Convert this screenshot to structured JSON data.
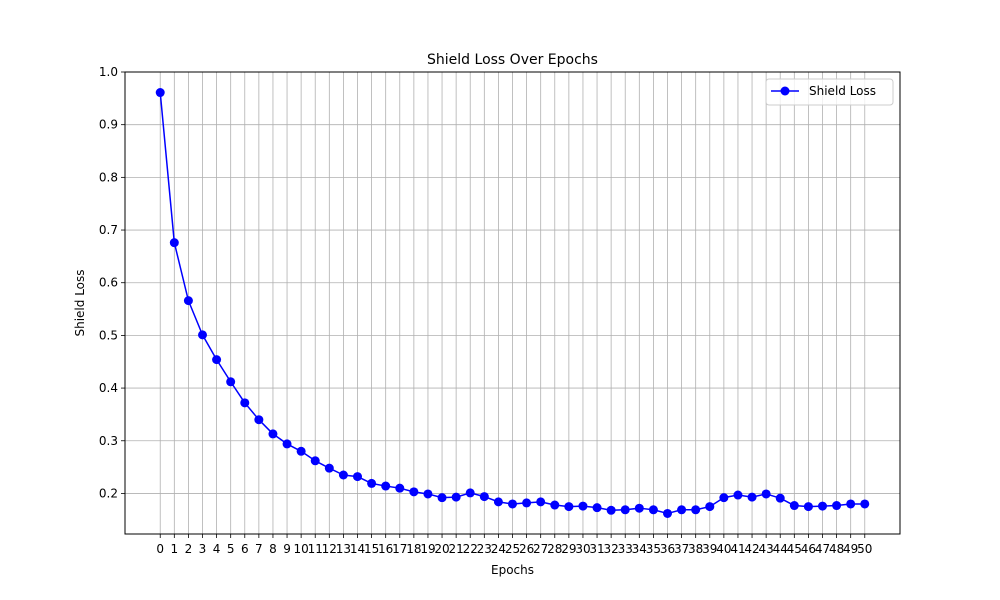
{
  "chart_data": {
    "type": "line",
    "title": "Shield Loss Over Epochs",
    "xlabel": "Epochs",
    "ylabel": "Shield Loss",
    "x": [
      0,
      1,
      2,
      3,
      4,
      5,
      6,
      7,
      8,
      9,
      10,
      11,
      12,
      13,
      14,
      15,
      16,
      17,
      18,
      19,
      20,
      21,
      22,
      23,
      24,
      25,
      26,
      27,
      28,
      29,
      30,
      31,
      32,
      33,
      34,
      35,
      36,
      37,
      38,
      39,
      40,
      41,
      42,
      43,
      44,
      45,
      46,
      47,
      48,
      49,
      50
    ],
    "series": [
      {
        "name": "Shield Loss",
        "color": "#0000ff",
        "marker": "circle",
        "values": [
          0.961,
          0.676,
          0.566,
          0.501,
          0.454,
          0.412,
          0.372,
          0.34,
          0.313,
          0.294,
          0.28,
          0.262,
          0.248,
          0.235,
          0.232,
          0.219,
          0.214,
          0.21,
          0.203,
          0.199,
          0.192,
          0.193,
          0.201,
          0.194,
          0.184,
          0.18,
          0.182,
          0.184,
          0.178,
          0.175,
          0.176,
          0.173,
          0.168,
          0.169,
          0.172,
          0.169,
          0.162,
          0.169,
          0.169,
          0.175,
          0.192,
          0.197,
          0.193,
          0.199,
          0.191,
          0.177,
          0.175,
          0.176,
          0.177,
          0.18,
          0.18
        ]
      }
    ],
    "xticks": [
      "0",
      "1",
      "2",
      "3",
      "4",
      "5",
      "6",
      "7",
      "8",
      "9",
      "10",
      "11",
      "12",
      "13",
      "14",
      "15",
      "16",
      "17",
      "18",
      "19",
      "20",
      "21",
      "22",
      "23",
      "24",
      "25",
      "26",
      "27",
      "28",
      "29",
      "30",
      "31",
      "32",
      "33",
      "34",
      "35",
      "36",
      "37",
      "38",
      "39",
      "40",
      "41",
      "42",
      "43",
      "44",
      "45",
      "46",
      "47",
      "48",
      "49",
      "50"
    ],
    "yticks": [
      0.2,
      0.3,
      0.4,
      0.5,
      0.6,
      0.7,
      0.8,
      0.9,
      1.0
    ],
    "ytick_labels": [
      "0.2",
      "0.3",
      "0.4",
      "0.5",
      "0.6",
      "0.7",
      "0.8",
      "0.9",
      "1.0"
    ],
    "xlim": [
      -2.5,
      52.5
    ],
    "ylim": [
      0.123,
      1.0
    ],
    "grid": true,
    "legend_position": "top-right"
  }
}
